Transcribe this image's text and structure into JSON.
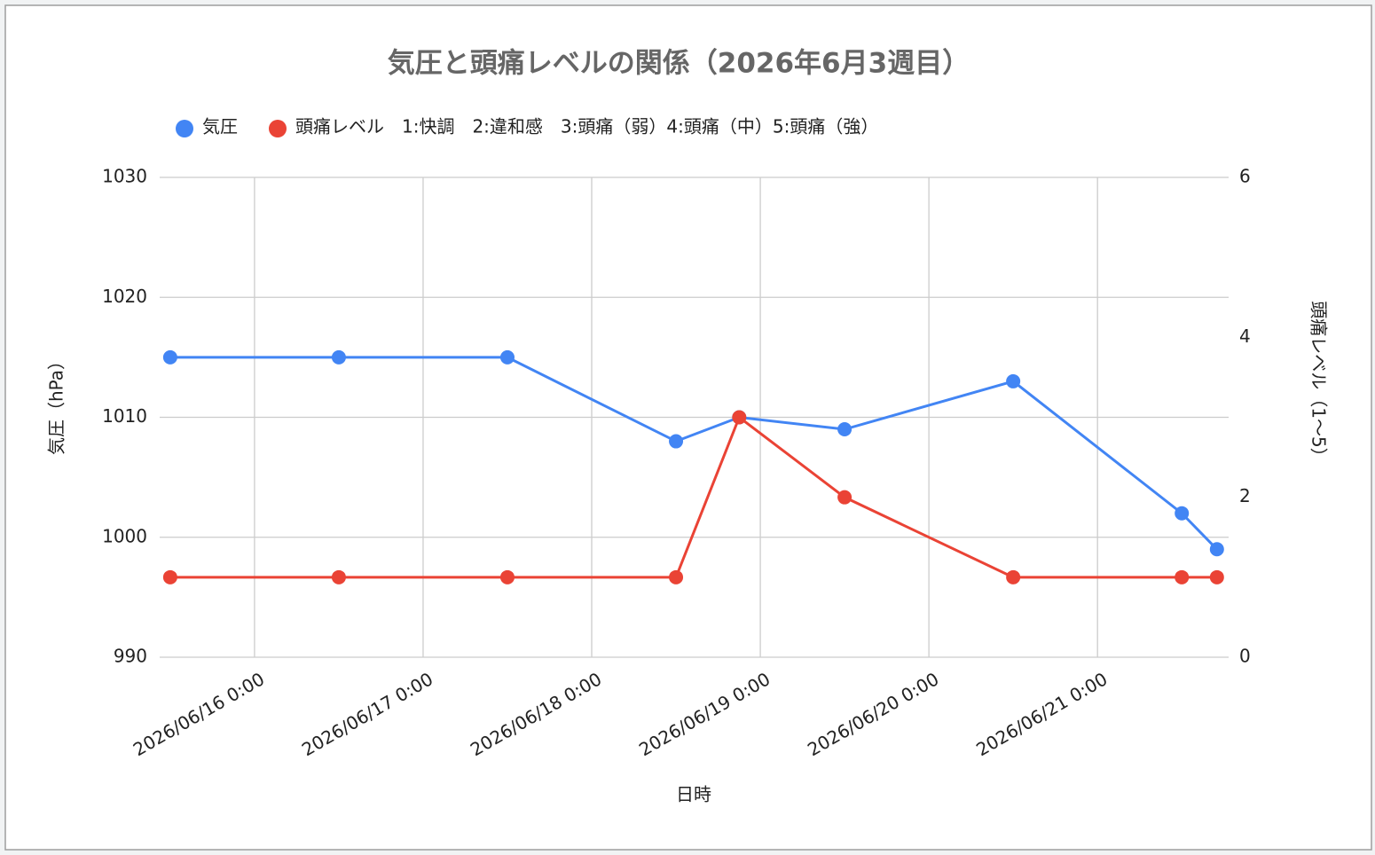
{
  "chart_data": {
    "type": "line",
    "title": "気圧と頭痛レベルの関係（2026年6月3週目）",
    "x_label": "日時",
    "y_label": "気圧（hPa）",
    "y2_label": "頭痛レベル（1〜5）",
    "x": [
      "2026/06/15 12:00",
      "2026/06/16 12:00",
      "2026/06/17 12:00",
      "2026/06/18 12:00",
      "2026/06/18 21:00",
      "2026/06/19 12:00",
      "2026/06/20 12:00",
      "2026/06/21 12:00",
      "2026/06/21 17:00"
    ],
    "xlim": [
      "2026/06/15 10:30",
      "2026/06/21 18:40"
    ],
    "xticks": [
      "2026/06/16 0:00",
      "2026/06/17 0:00",
      "2026/06/18 0:00",
      "2026/06/19 0:00",
      "2026/06/20 0:00",
      "2026/06/21 0:00"
    ],
    "ylim": [
      990,
      1030
    ],
    "yticks": [
      990,
      1000,
      1010,
      1020,
      1030
    ],
    "y2lim": [
      0,
      6
    ],
    "y2ticks": [
      0,
      2,
      4,
      6
    ],
    "grid": true,
    "legend": "top",
    "series": [
      {
        "name": "気圧",
        "color": "#4285f4",
        "values": [
          1015,
          1015,
          1015,
          1008,
          1010,
          1009,
          1013,
          1002,
          999
        ]
      },
      {
        "name": "頭痛レベル　1:快調　2:違和感　3:頭痛（弱）4:頭痛（中）5:頭痛（強）",
        "color": "#ea4335",
        "axis": "y2",
        "values": [
          1,
          1,
          1,
          1,
          3,
          2,
          1,
          1,
          1
        ]
      }
    ]
  }
}
